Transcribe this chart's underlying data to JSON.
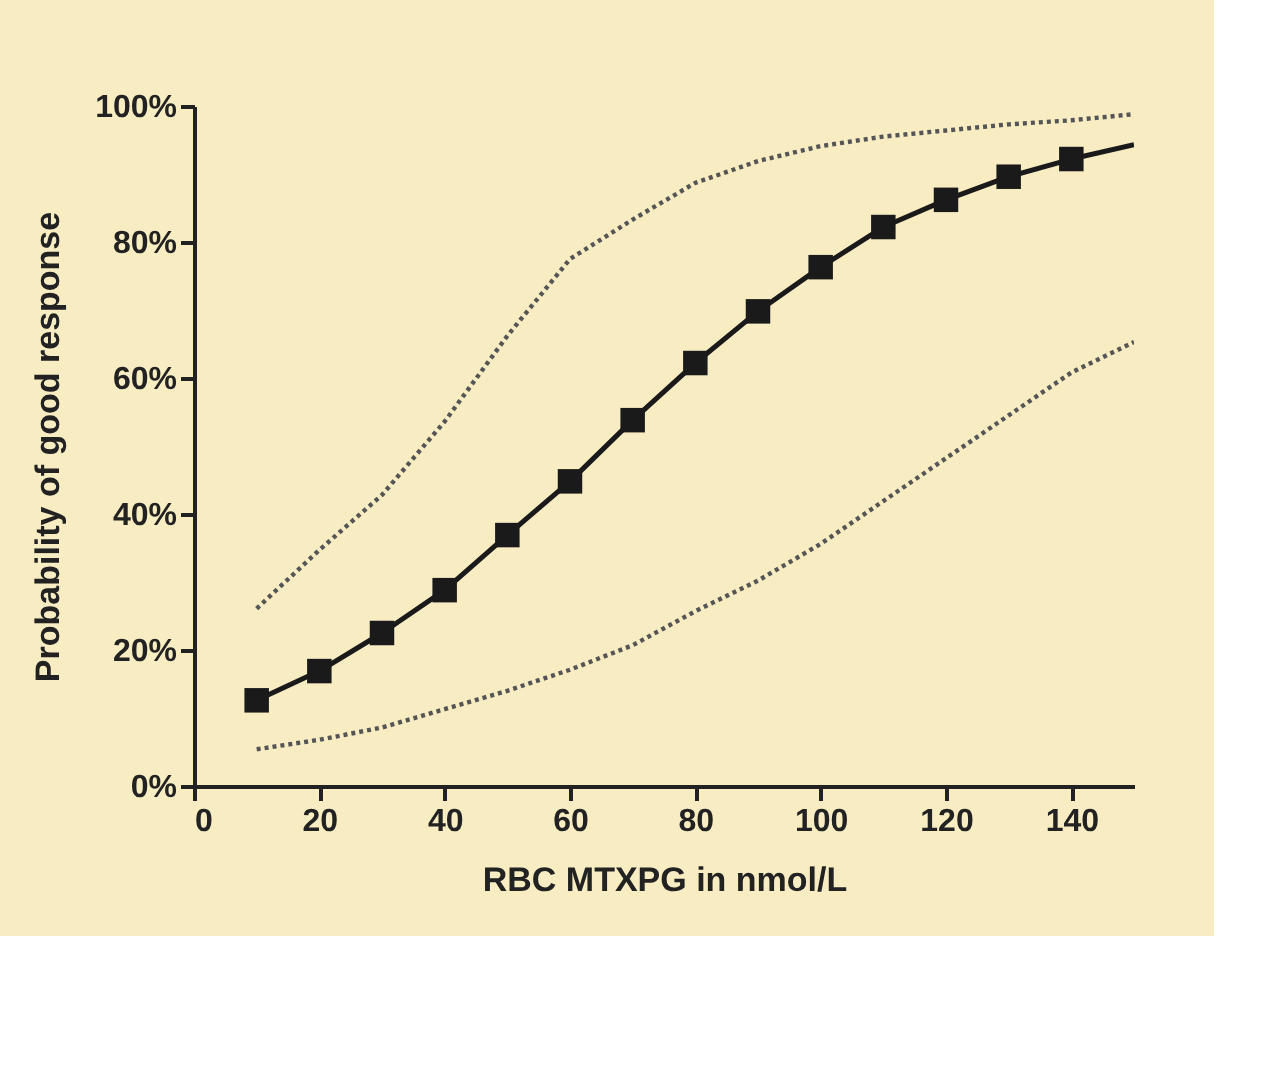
{
  "chart_data": {
    "type": "line",
    "xlabel": "RBC MTXPG in nmol/L",
    "ylabel": "Probability of  good response",
    "xlim": [
      0,
      150
    ],
    "xticks": [
      0,
      20,
      40,
      60,
      80,
      100,
      120,
      140
    ],
    "ylim": [
      0,
      100
    ],
    "yticks": [
      {
        "value": 0,
        "label": "0%"
      },
      {
        "value": 20,
        "label": "20%"
      },
      {
        "value": 40,
        "label": "40%"
      },
      {
        "value": 60,
        "label": "60%"
      },
      {
        "value": 80,
        "label": "80%"
      },
      {
        "value": 100,
        "label": "100%"
      }
    ],
    "grid": false,
    "series": [
      {
        "color": "#1a1a1a",
        "marker": "square",
        "line_style": "solid",
        "x": [
          10,
          20,
          30,
          40,
          50,
          60,
          70,
          80,
          90,
          100,
          110,
          120,
          130,
          140
        ],
        "values": [
          12.6,
          16.9,
          22.5,
          28.8,
          36.9,
          44.8,
          53.8,
          62.2,
          69.8,
          76.3,
          82.2,
          86.2,
          89.6,
          92.2
        ]
      },
      {
        "color": "#1a1a1a",
        "marker": "none",
        "line_style": "solid",
        "x": [
          140,
          150
        ],
        "values": [
          92.2,
          94.3
        ]
      },
      {
        "color": "#555555",
        "marker": "none",
        "line_style": "dotted",
        "x": [
          10,
          20,
          30,
          40,
          50,
          60,
          70,
          80,
          90,
          100,
          110,
          120,
          130,
          140,
          150
        ],
        "values": [
          26.1,
          34.7,
          42.8,
          53.6,
          66.2,
          77.5,
          83.3,
          88.7,
          91.9,
          94.1,
          95.5,
          96.4,
          97.3,
          97.9,
          98.8
        ]
      },
      {
        "color": "#555555",
        "marker": "none",
        "line_style": "dotted",
        "x": [
          10,
          20,
          30,
          40,
          50,
          60,
          70,
          80,
          90,
          100,
          110,
          120,
          130,
          140,
          150
        ],
        "values": [
          5.4,
          6.8,
          8.6,
          11.3,
          14.0,
          17.1,
          20.7,
          25.7,
          30.2,
          35.6,
          41.9,
          48.2,
          54.5,
          60.8,
          65.3
        ]
      }
    ]
  }
}
